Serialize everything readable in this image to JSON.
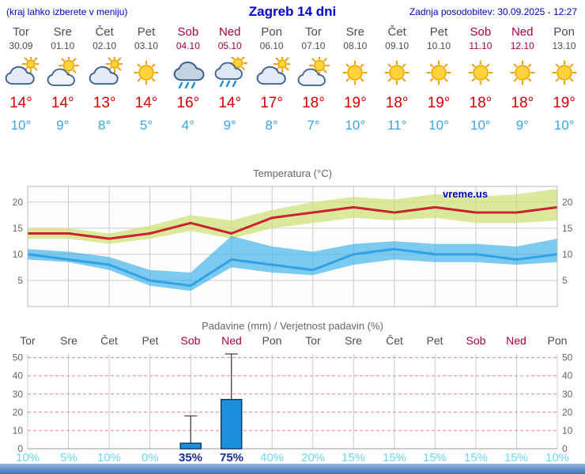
{
  "header": {
    "left_note": "(kraj lahko izberete v meniju)",
    "title": "Zagreb 14 dni",
    "updated": "Zadnja posodobitev: 30.09.2025 - 12:27"
  },
  "colors": {
    "header_blue": "#0000cc",
    "weekend_red": "#aa0044",
    "day_gray": "#4d4d4d",
    "tmax_red": "#d40000",
    "tmin_blue": "#3aa5e8",
    "percent_cyan": "#6dd6f2",
    "percent_navy": "#1c2f8f",
    "grid_gray": "#cccccc",
    "plot_border": "#bbbbbb",
    "precip_grid_red": "#e08888",
    "chart_text": "#666666",
    "watermark_blue": "#0000bb",
    "bar_blue": "#1e8fdc",
    "bar_border": "#0c3c70",
    "whisker": "#444444",
    "bottom_bar_top": "#8fb6e4",
    "bottom_bar_bottom": "#3f74b5"
  },
  "days": [
    {
      "name": "Tor",
      "date": "30.09",
      "weekend": false,
      "icon": "cloudy",
      "tmax": "14°",
      "tmin": "10°"
    },
    {
      "name": "Sre",
      "date": "01.10",
      "weekend": false,
      "icon": "partly",
      "tmax": "14°",
      "tmin": "9°"
    },
    {
      "name": "Čet",
      "date": "02.10",
      "weekend": false,
      "icon": "cloudy",
      "tmax": "13°",
      "tmin": "8°"
    },
    {
      "name": "Pet",
      "date": "03.10",
      "weekend": false,
      "icon": "sunny",
      "tmax": "14°",
      "tmin": "5°"
    },
    {
      "name": "Sob",
      "date": "04.10",
      "weekend": true,
      "icon": "rain",
      "tmax": "16°",
      "tmin": "4°"
    },
    {
      "name": "Ned",
      "date": "05.10",
      "weekend": true,
      "icon": "rain-sun",
      "tmax": "14°",
      "tmin": "9°"
    },
    {
      "name": "Pon",
      "date": "06.10",
      "weekend": false,
      "icon": "cloudy",
      "tmax": "17°",
      "tmin": "8°"
    },
    {
      "name": "Tor",
      "date": "07.10",
      "weekend": false,
      "icon": "partly",
      "tmax": "18°",
      "tmin": "7°"
    },
    {
      "name": "Sre",
      "date": "08.10",
      "weekend": false,
      "icon": "sunny",
      "tmax": "19°",
      "tmin": "10°"
    },
    {
      "name": "Čet",
      "date": "09.10",
      "weekend": false,
      "icon": "sunny",
      "tmax": "18°",
      "tmin": "11°"
    },
    {
      "name": "Pet",
      "date": "10.10",
      "weekend": false,
      "icon": "sunny",
      "tmax": "19°",
      "tmin": "10°"
    },
    {
      "name": "Sob",
      "date": "11.10",
      "weekend": true,
      "icon": "sunny",
      "tmax": "18°",
      "tmin": "10°"
    },
    {
      "name": "Ned",
      "date": "12.10",
      "weekend": true,
      "icon": "sunny",
      "tmax": "18°",
      "tmin": "9°"
    },
    {
      "name": "Pon",
      "date": "13.10",
      "weekend": false,
      "icon": "sunny",
      "tmax": "19°",
      "tmin": "10°"
    }
  ],
  "chart_data": [
    {
      "type": "line",
      "title": "Temperatura (°C)",
      "watermark": "vreme.us",
      "ylim": [
        0,
        23
      ],
      "yticks": [
        5,
        10,
        15,
        20
      ],
      "x_count": 14,
      "series": [
        {
          "name": "max-temp",
          "color": "#cc2233",
          "width": 3,
          "values": [
            14,
            14,
            13,
            14,
            16,
            14,
            17,
            18,
            19,
            18,
            19,
            18,
            18,
            19
          ]
        },
        {
          "name": "min-temp",
          "color": "#2fa3e6",
          "width": 3,
          "values": [
            10,
            9,
            8,
            5,
            4,
            9,
            8,
            7,
            10,
            11,
            10,
            10,
            9,
            10
          ]
        }
      ],
      "bands": [
        {
          "name": "max-temp-range",
          "color": "#cfe178",
          "opacity": 0.75,
          "upper": [
            15,
            15,
            14,
            15.5,
            17.5,
            16.5,
            18.5,
            20,
            21,
            20.5,
            21.5,
            21,
            21.5,
            22.5
          ],
          "lower": [
            13,
            13,
            12,
            13,
            14.5,
            13,
            15,
            16,
            17,
            16.5,
            17,
            16,
            16,
            16.5
          ]
        },
        {
          "name": "min-temp-range",
          "color": "#45b3e8",
          "opacity": 0.7,
          "upper": [
            11,
            10.5,
            9.5,
            7,
            6.5,
            13.5,
            11.5,
            10.5,
            12,
            12.5,
            12,
            12,
            11.5,
            13
          ],
          "lower": [
            9,
            8.5,
            7,
            4,
            3,
            7.5,
            6.5,
            6,
            8,
            9,
            8.5,
            8.5,
            8,
            8.5
          ]
        }
      ]
    },
    {
      "type": "bar",
      "title": "Padavine (mm) / Verjetnost padavin (%)",
      "ylim": [
        0,
        52
      ],
      "yticks": [
        0,
        10,
        20,
        30,
        40,
        50
      ],
      "categories": [
        {
          "label": "Tor",
          "weekend": false
        },
        {
          "label": "Sre",
          "weekend": false
        },
        {
          "label": "Čet",
          "weekend": false
        },
        {
          "label": "Pet",
          "weekend": false
        },
        {
          "label": "Sob",
          "weekend": true
        },
        {
          "label": "Ned",
          "weekend": true
        },
        {
          "label": "Pon",
          "weekend": false
        },
        {
          "label": "Tor",
          "weekend": false
        },
        {
          "label": "Sre",
          "weekend": false
        },
        {
          "label": "Čet",
          "weekend": false
        },
        {
          "label": "Pet",
          "weekend": false
        },
        {
          "label": "Sob",
          "weekend": true
        },
        {
          "label": "Ned",
          "weekend": true
        },
        {
          "label": "Pon",
          "weekend": false
        }
      ],
      "values": [
        0,
        0,
        0,
        0,
        3,
        27,
        0,
        0,
        0,
        0,
        0,
        0,
        0,
        0
      ],
      "whiskers": [
        0,
        0,
        0,
        0,
        18,
        52,
        0,
        0,
        0,
        0,
        0,
        0,
        0,
        0
      ],
      "probabilities": [
        {
          "label": "10%",
          "emphasis": false
        },
        {
          "label": "5%",
          "emphasis": false
        },
        {
          "label": "10%",
          "emphasis": false
        },
        {
          "label": "0%",
          "emphasis": false
        },
        {
          "label": "35%",
          "emphasis": true
        },
        {
          "label": "75%",
          "emphasis": true
        },
        {
          "label": "40%",
          "emphasis": false
        },
        {
          "label": "20%",
          "emphasis": false
        },
        {
          "label": "15%",
          "emphasis": false
        },
        {
          "label": "15%",
          "emphasis": false
        },
        {
          "label": "15%",
          "emphasis": false
        },
        {
          "label": "15%",
          "emphasis": false
        },
        {
          "label": "15%",
          "emphasis": false
        },
        {
          "label": "10%",
          "emphasis": false
        }
      ]
    }
  ]
}
